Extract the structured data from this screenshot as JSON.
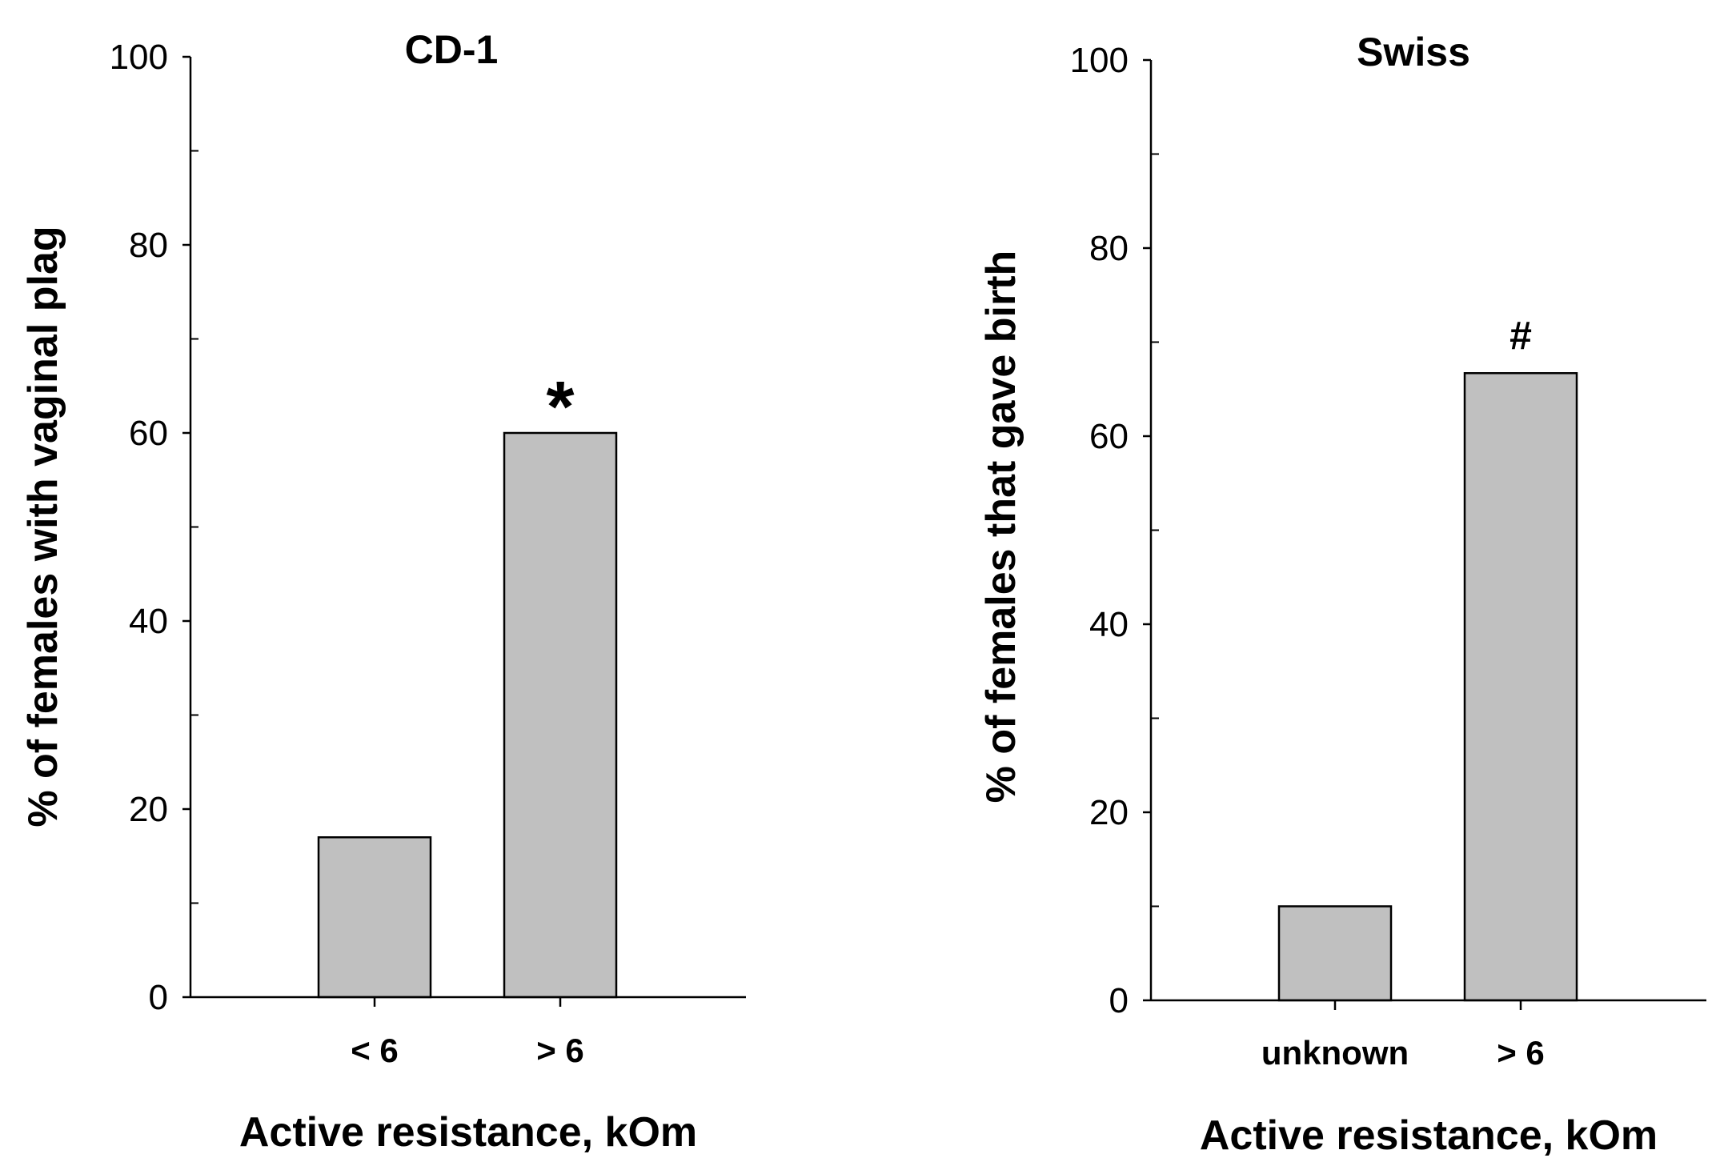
{
  "chart_data": [
    {
      "type": "bar",
      "title": "CD-1",
      "xlabel": "Active resistance, kOm",
      "ylabel": "% of females with vaginal plag",
      "categories": [
        "< 6",
        "> 6"
      ],
      "values": [
        17,
        60
      ],
      "annotations": [
        {
          "category_index": 1,
          "text": "*"
        }
      ],
      "ylim": [
        0,
        100
      ],
      "yticks": [
        0,
        20,
        40,
        60,
        80,
        100
      ],
      "grid": false,
      "bar_color": "#c0c0c0"
    },
    {
      "type": "bar",
      "title": "Swiss",
      "xlabel": "Active resistance, kOm",
      "ylabel": "% of females that gave birth",
      "categories": [
        "unknown",
        "> 6"
      ],
      "values": [
        10,
        66.7
      ],
      "annotations": [
        {
          "category_index": 1,
          "text": "#"
        }
      ],
      "ylim": [
        0,
        100
      ],
      "yticks": [
        0,
        20,
        40,
        60,
        80,
        100
      ],
      "grid": false,
      "bar_color": "#c0c0c0"
    }
  ]
}
